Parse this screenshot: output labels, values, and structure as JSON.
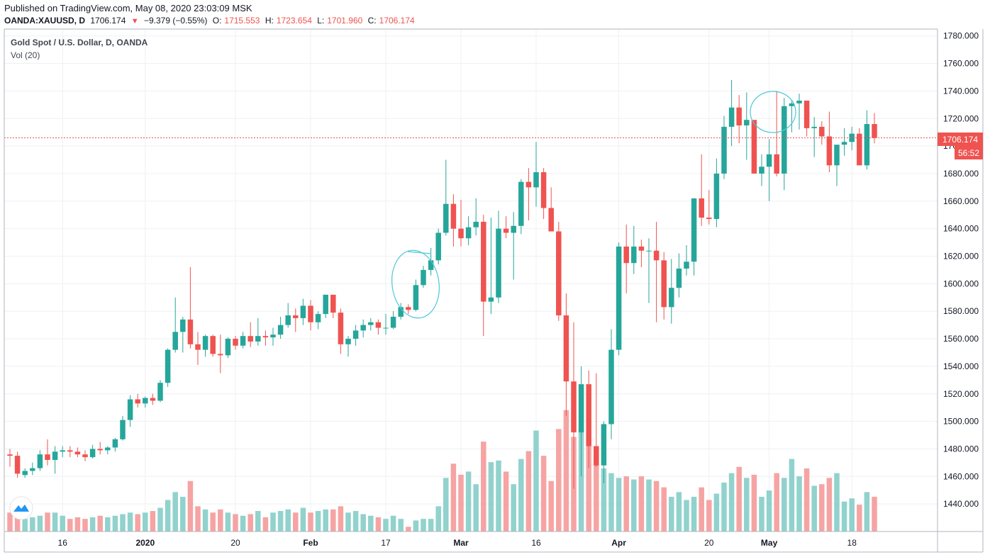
{
  "header": {
    "published": "Published on TradingView.com, May 08, 2020 23:03:09 MSK",
    "symbol": "OANDA:XAUUSD, D",
    "last": "1706.174",
    "change": "−9.379 (−0.55%)",
    "o_label": "O:",
    "o_val": "1715.553",
    "h_label": "H:",
    "h_val": "1723.654",
    "l_label": "L:",
    "l_val": "1701.960",
    "c_label": "C:",
    "c_val": "1706.174"
  },
  "legend": {
    "series_title": "Gold Spot / U.S. Dollar, D, OANDA",
    "volume_title": "Vol (20)"
  },
  "price_tag": {
    "price": "1706.174",
    "countdown": "56:52"
  },
  "colors": {
    "up": "#26a69a",
    "down": "#ef5350",
    "vol_up": "#91d2cd",
    "vol_down": "#f5a4a3",
    "annotation": "#4dc8d6",
    "grid": "#eef0f3"
  },
  "chart_data": {
    "type": "candlestick",
    "title": "Gold Spot / U.S. Dollar, D, OANDA",
    "ylim": [
      1420,
      1785
    ],
    "y_ticks": [
      1440,
      1460,
      1480,
      1500,
      1520,
      1540,
      1560,
      1580,
      1600,
      1620,
      1640,
      1660,
      1680,
      1700,
      1720,
      1740,
      1760,
      1780
    ],
    "y_tick_labels": [
      "1440.000",
      "1460.000",
      "1480.000",
      "1500.000",
      "1520.000",
      "1540.000",
      "1560.000",
      "1580.000",
      "1600.000",
      "1620.000",
      "1640.000",
      "1660.000",
      "1680.000",
      "1700.000",
      "1720.000",
      "1740.000",
      "1760.000",
      "1780.000"
    ],
    "x_labels": [
      {
        "bar": 7,
        "text": "16"
      },
      {
        "bar": 18,
        "text": "2020"
      },
      {
        "bar": 30,
        "text": "20"
      },
      {
        "bar": 40,
        "text": "Feb"
      },
      {
        "bar": 50,
        "text": "17"
      },
      {
        "bar": 60,
        "text": "Mar"
      },
      {
        "bar": 70,
        "text": "16"
      },
      {
        "bar": 81,
        "text": "Apr"
      },
      {
        "bar": 93,
        "text": "20"
      },
      {
        "bar": 101,
        "text": "May"
      },
      {
        "bar": 112,
        "text": "18"
      }
    ],
    "bars_in_view": 117,
    "ohlcv": [
      [
        1476,
        1480,
        1467,
        1475,
        12
      ],
      [
        1475,
        1478,
        1459,
        1462,
        10
      ],
      [
        1461,
        1466,
        1459,
        1464,
        8
      ],
      [
        1464,
        1470,
        1461,
        1466,
        9
      ],
      [
        1466,
        1479,
        1464,
        1476,
        10
      ],
      [
        1476,
        1487,
        1468,
        1472,
        12
      ],
      [
        1472,
        1482,
        1462,
        1478,
        12
      ],
      [
        1478,
        1482,
        1474,
        1479,
        10
      ],
      [
        1479,
        1482,
        1474,
        1478,
        8
      ],
      [
        1478,
        1481,
        1474,
        1476,
        9
      ],
      [
        1476,
        1479,
        1471,
        1474,
        8
      ],
      [
        1474,
        1483,
        1473,
        1480,
        9
      ],
      [
        1480,
        1485,
        1476,
        1479,
        10
      ],
      [
        1479,
        1482,
        1476,
        1481,
        9
      ],
      [
        1481,
        1488,
        1478,
        1487,
        10
      ],
      [
        1487,
        1504,
        1486,
        1501,
        11
      ],
      [
        1501,
        1519,
        1496,
        1516,
        12
      ],
      [
        1516,
        1520,
        1510,
        1513,
        11
      ],
      [
        1513,
        1518,
        1510,
        1517,
        12
      ],
      [
        1517,
        1520,
        1512,
        1515,
        13
      ],
      [
        1515,
        1530,
        1514,
        1528,
        15
      ],
      [
        1528,
        1553,
        1525,
        1552,
        20
      ],
      [
        1552,
        1590,
        1550,
        1565,
        25
      ],
      [
        1565,
        1576,
        1550,
        1574,
        22
      ],
      [
        1574,
        1612,
        1553,
        1556,
        32
      ],
      [
        1556,
        1565,
        1541,
        1552,
        16
      ],
      [
        1552,
        1563,
        1547,
        1562,
        14
      ],
      [
        1562,
        1563,
        1547,
        1549,
        12
      ],
      [
        1549,
        1563,
        1535,
        1548,
        14
      ],
      [
        1548,
        1561,
        1546,
        1560,
        12
      ],
      [
        1560,
        1562,
        1552,
        1555,
        11
      ],
      [
        1555,
        1565,
        1553,
        1562,
        10
      ],
      [
        1562,
        1572,
        1554,
        1558,
        11
      ],
      [
        1558,
        1575,
        1555,
        1562,
        13
      ],
      [
        1562,
        1566,
        1555,
        1561,
        9
      ],
      [
        1561,
        1568,
        1555,
        1563,
        12
      ],
      [
        1563,
        1576,
        1560,
        1570,
        13
      ],
      [
        1570,
        1586,
        1568,
        1577,
        14
      ],
      [
        1577,
        1582,
        1565,
        1575,
        12
      ],
      [
        1575,
        1589,
        1570,
        1584,
        15
      ],
      [
        1584,
        1588,
        1566,
        1572,
        12
      ],
      [
        1572,
        1580,
        1567,
        1578,
        13
      ],
      [
        1578,
        1592,
        1575,
        1592,
        14
      ],
      [
        1592,
        1592,
        1575,
        1579,
        14
      ],
      [
        1579,
        1582,
        1549,
        1556,
        16
      ],
      [
        1556,
        1562,
        1547,
        1560,
        12
      ],
      [
        1560,
        1570,
        1555,
        1566,
        13
      ],
      [
        1566,
        1574,
        1561,
        1570,
        11
      ],
      [
        1570,
        1575,
        1566,
        1572,
        10
      ],
      [
        1572,
        1574,
        1563,
        1568,
        9
      ],
      [
        1568,
        1578,
        1563,
        1568,
        8
      ],
      [
        1568,
        1580,
        1567,
        1576,
        10
      ],
      [
        1576,
        1586,
        1574,
        1583,
        8
      ],
      [
        1583,
        1585,
        1578,
        1581,
        3
      ],
      [
        1581,
        1603,
        1580,
        1599,
        7
      ],
      [
        1599,
        1613,
        1597,
        1610,
        8
      ],
      [
        1610,
        1626,
        1606,
        1617,
        8
      ],
      [
        1617,
        1640,
        1614,
        1637,
        16
      ],
      [
        1637,
        1690,
        1635,
        1658,
        34
      ],
      [
        1658,
        1665,
        1627,
        1640,
        43
      ],
      [
        1640,
        1661,
        1627,
        1633,
        36
      ],
      [
        1633,
        1649,
        1628,
        1641,
        38
      ],
      [
        1641,
        1662,
        1635,
        1645,
        30
      ],
      [
        1645,
        1650,
        1562,
        1587,
        57
      ],
      [
        1587,
        1648,
        1578,
        1590,
        44
      ],
      [
        1590,
        1653,
        1586,
        1640,
        45
      ],
      [
        1640,
        1649,
        1633,
        1637,
        38
      ],
      [
        1637,
        1652,
        1603,
        1642,
        30
      ],
      [
        1642,
        1676,
        1636,
        1674,
        46
      ],
      [
        1674,
        1684,
        1646,
        1670,
        51
      ],
      [
        1670,
        1703,
        1656,
        1681,
        64
      ],
      [
        1681,
        1684,
        1647,
        1655,
        48
      ],
      [
        1655,
        1670,
        1639,
        1638,
        32
      ],
      [
        1638,
        1645,
        1573,
        1577,
        65
      ],
      [
        1577,
        1593,
        1504,
        1529,
        77
      ],
      [
        1529,
        1572,
        1451,
        1492,
        60
      ],
      [
        1492,
        1540,
        1460,
        1527,
        65
      ],
      [
        1527,
        1537,
        1466,
        1482,
        60
      ],
      [
        1482,
        1535,
        1467,
        1468,
        48
      ],
      [
        1468,
        1500,
        1455,
        1498,
        40
      ],
      [
        1498,
        1567,
        1487,
        1552,
        37
      ],
      [
        1552,
        1630,
        1548,
        1627,
        34
      ],
      [
        1627,
        1643,
        1593,
        1615,
        35
      ],
      [
        1615,
        1642,
        1607,
        1627,
        33
      ],
      [
        1627,
        1632,
        1612,
        1624,
        35
      ],
      [
        1624,
        1633,
        1586,
        1624,
        33
      ],
      [
        1624,
        1645,
        1572,
        1617,
        32
      ],
      [
        1617,
        1623,
        1574,
        1583,
        28
      ],
      [
        1583,
        1618,
        1571,
        1597,
        22
      ],
      [
        1597,
        1622,
        1590,
        1611,
        25
      ],
      [
        1611,
        1628,
        1606,
        1616,
        20
      ],
      [
        1616,
        1662,
        1606,
        1662,
        22
      ],
      [
        1662,
        1694,
        1642,
        1648,
        28
      ],
      [
        1648,
        1668,
        1643,
        1647,
        20
      ],
      [
        1647,
        1691,
        1641,
        1680,
        24
      ],
      [
        1680,
        1722,
        1676,
        1714,
        31
      ],
      [
        1714,
        1748,
        1700,
        1728,
        37
      ],
      [
        1728,
        1737,
        1702,
        1715,
        41
      ],
      [
        1715,
        1739,
        1690,
        1719,
        34
      ],
      [
        1719,
        1718,
        1687,
        1680,
        36
      ],
      [
        1680,
        1694,
        1671,
        1685,
        22
      ],
      [
        1685,
        1705,
        1660,
        1694,
        26
      ],
      [
        1694,
        1740,
        1678,
        1680,
        37
      ],
      [
        1680,
        1735,
        1668,
        1729,
        34
      ],
      [
        1729,
        1733,
        1710,
        1731,
        46
      ],
      [
        1731,
        1738,
        1712,
        1733,
        35
      ],
      [
        1733,
        1719,
        1707,
        1713,
        40
      ],
      [
        1713,
        1721,
        1692,
        1714,
        29
      ],
      [
        1714,
        1718,
        1701,
        1707,
        30
      ],
      [
        1707,
        1725,
        1681,
        1686,
        34
      ],
      [
        1686,
        1700,
        1671,
        1701,
        37
      ],
      [
        1701,
        1713,
        1693,
        1703,
        19
      ],
      [
        1703,
        1714,
        1697,
        1709,
        21
      ],
      [
        1709,
        1713,
        1694,
        1686,
        17
      ],
      [
        1686,
        1726,
        1683,
        1716,
        25
      ],
      [
        1716,
        1724,
        1702,
        1706,
        22
      ]
    ],
    "volume_axis": {
      "max": 80
    }
  }
}
